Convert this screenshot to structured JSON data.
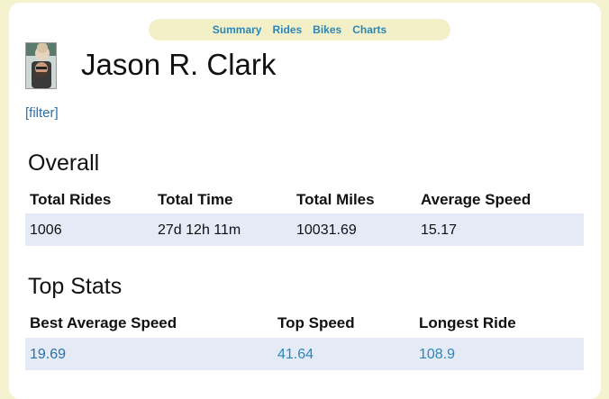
{
  "nav": {
    "items": [
      "Summary",
      "Rides",
      "Bikes",
      "Charts"
    ]
  },
  "profile": {
    "name": "Jason R. Clark",
    "filter_label": "[filter]"
  },
  "overall": {
    "title": "Overall",
    "headers": [
      "Total Rides",
      "Total Time",
      "Total Miles",
      "Average Speed"
    ],
    "values": [
      "1006",
      "27d 12h 11m",
      "10031.69",
      "15.17"
    ]
  },
  "top_stats": {
    "title": "Top Stats",
    "headers": [
      "Best Average Speed",
      "Top Speed",
      "Longest Ride"
    ],
    "values": [
      "19.69",
      "41.64",
      "108.9"
    ]
  },
  "colors": {
    "page_bg": "#f5f2cf",
    "nav_bg": "#f3f0c8",
    "link": "#2b86b8",
    "row_bg": "#e4ebf7"
  }
}
